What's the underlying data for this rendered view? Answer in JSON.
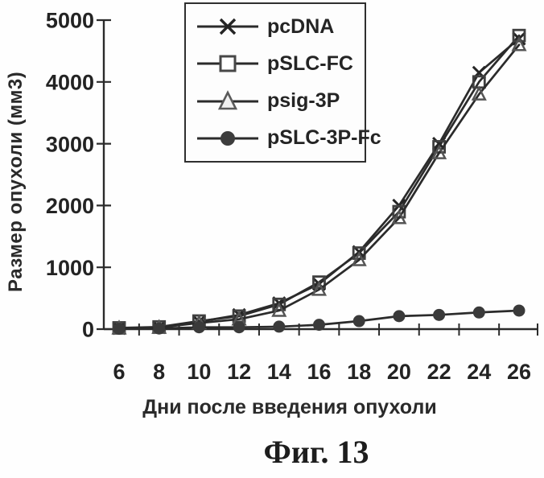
{
  "figure": {
    "caption": "Фиг. 13"
  },
  "chart_data": {
    "type": "line",
    "title": "",
    "xlabel": "Дни после введения опухоли",
    "ylabel": "Размер опухоли (мм3)",
    "x": [
      6,
      8,
      10,
      12,
      14,
      16,
      18,
      20,
      22,
      24,
      26
    ],
    "y_ticks": [
      0,
      1000,
      2000,
      3000,
      4000,
      5000
    ],
    "ylim": [
      0,
      5000
    ],
    "grid": false,
    "legend_position": "inside-top-center",
    "series": [
      {
        "name": "pcDNA",
        "marker": "x",
        "values": [
          15,
          30,
          120,
          230,
          420,
          730,
          1250,
          2000,
          3000,
          4150,
          4700
        ]
      },
      {
        "name": "pSLC-FC",
        "marker": "square",
        "values": [
          20,
          35,
          130,
          210,
          400,
          760,
          1230,
          1900,
          2950,
          4000,
          4750
        ]
      },
      {
        "name": "psig-3P",
        "marker": "triangle",
        "values": [
          15,
          25,
          100,
          160,
          300,
          640,
          1120,
          1800,
          2850,
          3800,
          4600
        ]
      },
      {
        "name": "pSLC-3P-Fc",
        "marker": "circle",
        "values": [
          5,
          10,
          30,
          30,
          40,
          70,
          130,
          210,
          230,
          270,
          300
        ]
      }
    ],
    "colors": {
      "line": "#2b2b2b",
      "axis": "#2b2b2b",
      "marker_dark": "#3a3a3a",
      "text": "#232323",
      "background": "#fefefe"
    }
  }
}
